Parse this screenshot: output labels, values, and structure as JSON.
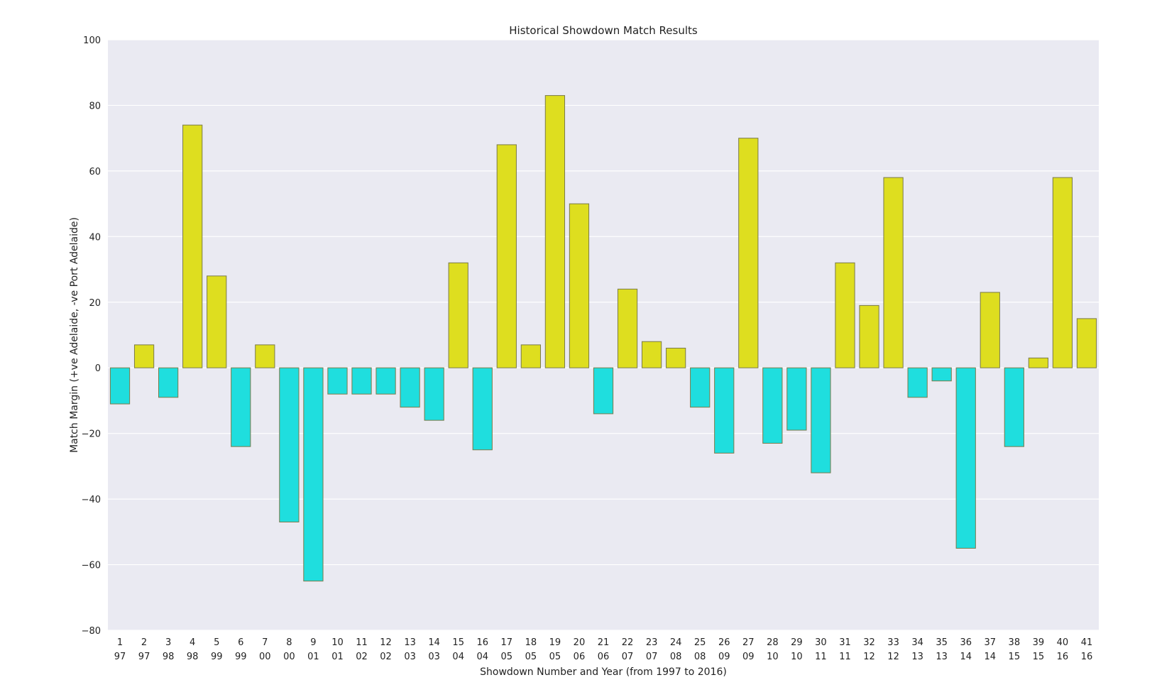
{
  "chart_data": {
    "type": "bar",
    "title": "Historical Showdown Match Results",
    "xlabel": "Showdown Number and Year (from 1997 to 2016)",
    "ylabel": "Match Margin (+ve Adelaide, -ve Port Adelaide)",
    "ylim": [
      -80,
      100
    ],
    "yticks": [
      -80,
      -60,
      -40,
      -20,
      0,
      20,
      40,
      60,
      80,
      100
    ],
    "ytick_labels": [
      "−80",
      "−60",
      "−40",
      "−20",
      "0",
      "20",
      "40",
      "60",
      "80",
      "100"
    ],
    "grid": true,
    "colors": {
      "positive": "#dede1f",
      "negative": "#1fdede",
      "edge": "#7a7a4a",
      "background": "#eaeaf2",
      "grid": "#ffffff"
    },
    "categories": [
      {
        "number": "1",
        "year": "97"
      },
      {
        "number": "2",
        "year": "97"
      },
      {
        "number": "3",
        "year": "98"
      },
      {
        "number": "4",
        "year": "98"
      },
      {
        "number": "5",
        "year": "99"
      },
      {
        "number": "6",
        "year": "99"
      },
      {
        "number": "7",
        "year": "00"
      },
      {
        "number": "8",
        "year": "00"
      },
      {
        "number": "9",
        "year": "01"
      },
      {
        "number": "10",
        "year": "01"
      },
      {
        "number": "11",
        "year": "02"
      },
      {
        "number": "12",
        "year": "02"
      },
      {
        "number": "13",
        "year": "03"
      },
      {
        "number": "14",
        "year": "03"
      },
      {
        "number": "15",
        "year": "04"
      },
      {
        "number": "16",
        "year": "04"
      },
      {
        "number": "17",
        "year": "05"
      },
      {
        "number": "18",
        "year": "05"
      },
      {
        "number": "19",
        "year": "05"
      },
      {
        "number": "20",
        "year": "06"
      },
      {
        "number": "21",
        "year": "06"
      },
      {
        "number": "22",
        "year": "07"
      },
      {
        "number": "23",
        "year": "07"
      },
      {
        "number": "24",
        "year": "08"
      },
      {
        "number": "25",
        "year": "08"
      },
      {
        "number": "26",
        "year": "09"
      },
      {
        "number": "27",
        "year": "09"
      },
      {
        "number": "28",
        "year": "10"
      },
      {
        "number": "29",
        "year": "10"
      },
      {
        "number": "30",
        "year": "11"
      },
      {
        "number": "31",
        "year": "11"
      },
      {
        "number": "32",
        "year": "12"
      },
      {
        "number": "33",
        "year": "12"
      },
      {
        "number": "34",
        "year": "13"
      },
      {
        "number": "35",
        "year": "13"
      },
      {
        "number": "36",
        "year": "14"
      },
      {
        "number": "37",
        "year": "14"
      },
      {
        "number": "38",
        "year": "15"
      },
      {
        "number": "39",
        "year": "15"
      },
      {
        "number": "40",
        "year": "16"
      },
      {
        "number": "41",
        "year": "16"
      }
    ],
    "values": [
      -11,
      7,
      -9,
      74,
      28,
      -24,
      7,
      -47,
      -65,
      -8,
      -8,
      -8,
      -12,
      -16,
      32,
      -25,
      68,
      7,
      83,
      50,
      -14,
      24,
      8,
      6,
      -12,
      -26,
      70,
      -23,
      -19,
      -32,
      32,
      19,
      58,
      -9,
      -4,
      -55,
      23,
      -24,
      3,
      58,
      15
    ]
  }
}
